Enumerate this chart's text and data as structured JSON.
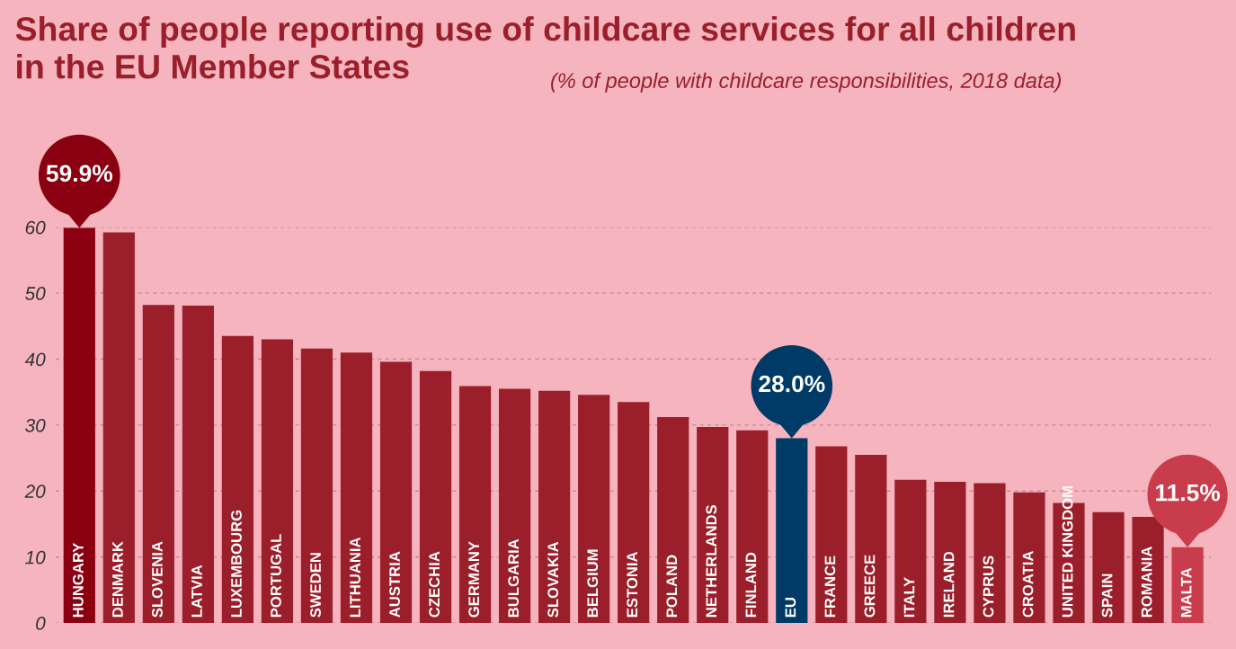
{
  "chart_data": {
    "type": "bar",
    "title": "Share of people reporting use of childcare services for all children\nin the EU Member States",
    "subtitle": "(% of people with childcare responsibilities, 2018 data)",
    "categories": [
      "HUNGARY",
      "DENMARK",
      "SLOVENIA",
      "LATVIA",
      "LUXEMBOURG",
      "PORTUGAL",
      "SWEDEN",
      "LITHUANIA",
      "AUSTRIA",
      "CZECHIA",
      "GERMANY",
      "BULGARIA",
      "SLOVAKIA",
      "BELGIUM",
      "ESTONIA",
      "POLAND",
      "NETHERLANDS",
      "FINLAND",
      "EU",
      "FRANCE",
      "GREECE",
      "ITALY",
      "IRELAND",
      "CYPRUS",
      "CROATIA",
      "UNITED KINGDOM",
      "SPAIN",
      "ROMANIA",
      "MALTA"
    ],
    "values": [
      59.9,
      59.2,
      48.2,
      48.1,
      43.5,
      43.0,
      41.6,
      41.0,
      39.6,
      38.2,
      35.9,
      35.5,
      35.2,
      34.6,
      33.5,
      31.2,
      29.7,
      29.2,
      28.0,
      26.8,
      25.5,
      21.7,
      21.4,
      21.2,
      19.8,
      18.2,
      16.8,
      16.1,
      11.5
    ],
    "colors": [
      "#8b0010",
      "#9b1f2a",
      "#9b1f2a",
      "#9b1f2a",
      "#9b1f2a",
      "#9b1f2a",
      "#9b1f2a",
      "#9b1f2a",
      "#9b1f2a",
      "#9b1f2a",
      "#9b1f2a",
      "#9b1f2a",
      "#9b1f2a",
      "#9b1f2a",
      "#9b1f2a",
      "#9b1f2a",
      "#9b1f2a",
      "#9b1f2a",
      "#003a66",
      "#9b1f2a",
      "#9b1f2a",
      "#9b1f2a",
      "#9b1f2a",
      "#9b1f2a",
      "#9b1f2a",
      "#9b1f2a",
      "#9b1f2a",
      "#9b1f2a",
      "#c93c4b"
    ],
    "value_labels": [
      "59.9%",
      null,
      null,
      null,
      null,
      null,
      null,
      null,
      null,
      null,
      null,
      null,
      null,
      null,
      null,
      null,
      null,
      null,
      "28.0%",
      null,
      null,
      null,
      null,
      null,
      null,
      null,
      null,
      null,
      "11.5%"
    ],
    "ylim": [
      0,
      60
    ],
    "yticks": [
      0,
      10,
      20,
      30,
      40,
      50,
      60
    ],
    "grid": "y",
    "legend": false
  }
}
